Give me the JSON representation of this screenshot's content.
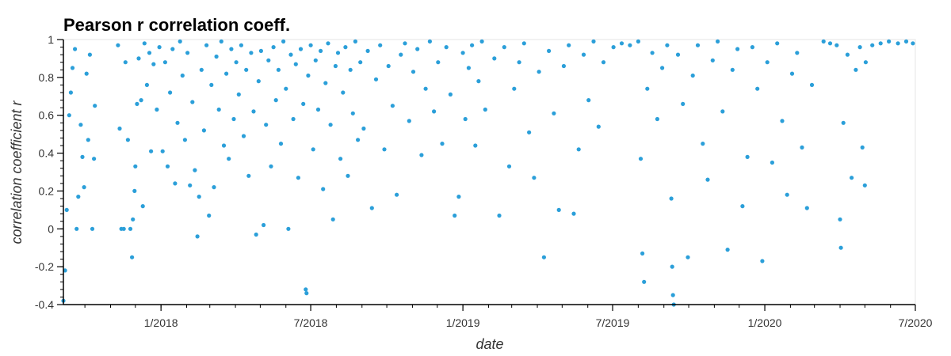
{
  "chart_data": {
    "type": "scatter",
    "title": "Pearson r correlation coeff.",
    "xlabel": "date",
    "ylabel": "correlation coefficient r",
    "x_type": "date",
    "xlim": [
      "2017-09-05",
      "2020-07-01"
    ],
    "ylim": [
      -0.4,
      1
    ],
    "y_ticks": [
      "-0.4",
      "-0.2",
      "0",
      "0.2",
      "0.4",
      "0.6",
      "0.8",
      "1"
    ],
    "y_tick_values": [
      -0.4,
      -0.2,
      0,
      0.2,
      0.4,
      0.6,
      0.8,
      1
    ],
    "x_ticks": [
      "1/2018",
      "7/2018",
      "1/2019",
      "7/2019",
      "1/2020",
      "7/2020"
    ],
    "x_tick_values": [
      "2018-01-01",
      "2018-07-01",
      "2019-01-01",
      "2019-07-01",
      "2020-01-01",
      "2020-07-01"
    ],
    "grid": false,
    "legend": "none",
    "point_color": "#2b9fd9",
    "series": [
      {
        "points": [
          [
            "2017-09-05",
            -0.38
          ],
          [
            "2017-09-07",
            -0.22
          ],
          [
            "2017-09-09",
            0.1
          ],
          [
            "2017-09-12",
            0.6
          ],
          [
            "2017-09-14",
            0.72
          ],
          [
            "2017-09-16",
            0.85
          ],
          [
            "2017-09-19",
            0.95
          ],
          [
            "2017-09-21",
            0.0
          ],
          [
            "2017-09-23",
            0.17
          ],
          [
            "2017-09-26",
            0.55
          ],
          [
            "2017-09-28",
            0.38
          ],
          [
            "2017-09-30",
            0.22
          ],
          [
            "2017-10-03",
            0.82
          ],
          [
            "2017-10-05",
            0.47
          ],
          [
            "2017-10-07",
            0.92
          ],
          [
            "2017-10-10",
            0.0
          ],
          [
            "2017-10-12",
            0.37
          ],
          [
            "2017-10-13",
            0.65
          ],
          [
            "2017-11-10",
            0.97
          ],
          [
            "2017-11-12",
            0.53
          ],
          [
            "2017-11-14",
            0.0
          ],
          [
            "2017-11-17",
            0.0
          ],
          [
            "2017-11-19",
            0.88
          ],
          [
            "2017-11-22",
            0.47
          ],
          [
            "2017-11-25",
            0.0
          ],
          [
            "2017-11-27",
            -0.15
          ],
          [
            "2017-11-28",
            0.05
          ],
          [
            "2017-11-30",
            0.2
          ],
          [
            "2017-12-01",
            0.33
          ],
          [
            "2017-12-03",
            0.66
          ],
          [
            "2017-12-05",
            0.9
          ],
          [
            "2017-12-08",
            0.68
          ],
          [
            "2017-12-10",
            0.12
          ],
          [
            "2017-12-12",
            0.98
          ],
          [
            "2017-12-15",
            0.76
          ],
          [
            "2017-12-18",
            0.93
          ],
          [
            "2017-12-20",
            0.41
          ],
          [
            "2017-12-23",
            0.87
          ],
          [
            "2017-12-27",
            0.63
          ],
          [
            "2017-12-30",
            0.96
          ],
          [
            "2018-01-03",
            0.41
          ],
          [
            "2018-01-06",
            0.88
          ],
          [
            "2018-01-09",
            0.33
          ],
          [
            "2018-01-12",
            0.72
          ],
          [
            "2018-01-15",
            0.95
          ],
          [
            "2018-01-18",
            0.24
          ],
          [
            "2018-01-21",
            0.56
          ],
          [
            "2018-01-24",
            0.99
          ],
          [
            "2018-01-27",
            0.81
          ],
          [
            "2018-01-30",
            0.47
          ],
          [
            "2018-02-02",
            0.93
          ],
          [
            "2018-02-05",
            0.23
          ],
          [
            "2018-02-08",
            0.67
          ],
          [
            "2018-02-11",
            0.31
          ],
          [
            "2018-02-14",
            -0.04
          ],
          [
            "2018-02-16",
            0.17
          ],
          [
            "2018-02-19",
            0.84
          ],
          [
            "2018-02-22",
            0.52
          ],
          [
            "2018-02-25",
            0.97
          ],
          [
            "2018-02-28",
            0.07
          ],
          [
            "2018-03-03",
            0.76
          ],
          [
            "2018-03-06",
            0.22
          ],
          [
            "2018-03-09",
            0.91
          ],
          [
            "2018-03-12",
            0.63
          ],
          [
            "2018-03-15",
            0.99
          ],
          [
            "2018-03-18",
            0.44
          ],
          [
            "2018-03-21",
            0.82
          ],
          [
            "2018-03-24",
            0.37
          ],
          [
            "2018-03-27",
            0.95
          ],
          [
            "2018-03-30",
            0.58
          ],
          [
            "2018-04-02",
            0.88
          ],
          [
            "2018-04-05",
            0.71
          ],
          [
            "2018-04-08",
            0.97
          ],
          [
            "2018-04-11",
            0.49
          ],
          [
            "2018-04-14",
            0.84
          ],
          [
            "2018-04-17",
            0.28
          ],
          [
            "2018-04-20",
            0.93
          ],
          [
            "2018-04-23",
            0.62
          ],
          [
            "2018-04-26",
            -0.03
          ],
          [
            "2018-04-29",
            0.78
          ],
          [
            "2018-05-02",
            0.94
          ],
          [
            "2018-05-05",
            0.02
          ],
          [
            "2018-05-08",
            0.55
          ],
          [
            "2018-05-11",
            0.89
          ],
          [
            "2018-05-14",
            0.33
          ],
          [
            "2018-05-17",
            0.96
          ],
          [
            "2018-05-20",
            0.68
          ],
          [
            "2018-05-23",
            0.84
          ],
          [
            "2018-05-26",
            0.45
          ],
          [
            "2018-05-29",
            0.99
          ],
          [
            "2018-06-01",
            0.74
          ],
          [
            "2018-06-04",
            0.0
          ],
          [
            "2018-06-07",
            0.92
          ],
          [
            "2018-06-10",
            0.58
          ],
          [
            "2018-06-13",
            0.87
          ],
          [
            "2018-06-16",
            0.27
          ],
          [
            "2018-06-19",
            0.95
          ],
          [
            "2018-06-22",
            0.66
          ],
          [
            "2018-06-25",
            -0.32
          ],
          [
            "2018-06-26",
            -0.34
          ],
          [
            "2018-06-28",
            0.81
          ],
          [
            "2018-07-01",
            0.97
          ],
          [
            "2018-07-04",
            0.42
          ],
          [
            "2018-07-07",
            0.89
          ],
          [
            "2018-07-10",
            0.63
          ],
          [
            "2018-07-13",
            0.94
          ],
          [
            "2018-07-16",
            0.21
          ],
          [
            "2018-07-19",
            0.77
          ],
          [
            "2018-07-22",
            0.98
          ],
          [
            "2018-07-25",
            0.55
          ],
          [
            "2018-07-28",
            0.05
          ],
          [
            "2018-07-31",
            0.86
          ],
          [
            "2018-08-03",
            0.93
          ],
          [
            "2018-08-06",
            0.37
          ],
          [
            "2018-08-09",
            0.72
          ],
          [
            "2018-08-12",
            0.96
          ],
          [
            "2018-08-15",
            0.28
          ],
          [
            "2018-08-18",
            0.84
          ],
          [
            "2018-08-21",
            0.61
          ],
          [
            "2018-08-24",
            0.99
          ],
          [
            "2018-08-27",
            0.47
          ],
          [
            "2018-08-30",
            0.88
          ],
          [
            "2018-09-03",
            0.53
          ],
          [
            "2018-09-08",
            0.94
          ],
          [
            "2018-09-13",
            0.11
          ],
          [
            "2018-09-18",
            0.79
          ],
          [
            "2018-09-23",
            0.97
          ],
          [
            "2018-09-28",
            0.42
          ],
          [
            "2018-10-03",
            0.86
          ],
          [
            "2018-10-08",
            0.65
          ],
          [
            "2018-10-13",
            0.18
          ],
          [
            "2018-10-18",
            0.92
          ],
          [
            "2018-10-23",
            0.98
          ],
          [
            "2018-10-28",
            0.57
          ],
          [
            "2018-11-02",
            0.83
          ],
          [
            "2018-11-07",
            0.95
          ],
          [
            "2018-11-12",
            0.39
          ],
          [
            "2018-11-17",
            0.74
          ],
          [
            "2018-11-22",
            0.99
          ],
          [
            "2018-11-27",
            0.62
          ],
          [
            "2018-12-02",
            0.88
          ],
          [
            "2018-12-07",
            0.45
          ],
          [
            "2018-12-12",
            0.96
          ],
          [
            "2018-12-17",
            0.71
          ],
          [
            "2018-12-22",
            0.07
          ],
          [
            "2018-12-27",
            0.17
          ],
          [
            "2019-01-01",
            0.93
          ],
          [
            "2019-01-04",
            0.58
          ],
          [
            "2019-01-08",
            0.85
          ],
          [
            "2019-01-12",
            0.97
          ],
          [
            "2019-01-16",
            0.44
          ],
          [
            "2019-01-20",
            0.78
          ],
          [
            "2019-01-24",
            0.99
          ],
          [
            "2019-01-28",
            0.63
          ],
          [
            "2019-02-08",
            0.9
          ],
          [
            "2019-02-14",
            0.07
          ],
          [
            "2019-02-20",
            0.96
          ],
          [
            "2019-02-26",
            0.33
          ],
          [
            "2019-03-04",
            0.74
          ],
          [
            "2019-03-10",
            0.88
          ],
          [
            "2019-03-16",
            0.98
          ],
          [
            "2019-03-22",
            0.51
          ],
          [
            "2019-03-28",
            0.27
          ],
          [
            "2019-04-03",
            0.83
          ],
          [
            "2019-04-09",
            -0.15
          ],
          [
            "2019-04-15",
            0.94
          ],
          [
            "2019-04-21",
            0.61
          ],
          [
            "2019-04-27",
            0.1
          ],
          [
            "2019-05-03",
            0.86
          ],
          [
            "2019-05-09",
            0.97
          ],
          [
            "2019-05-15",
            0.08
          ],
          [
            "2019-05-21",
            0.42
          ],
          [
            "2019-05-27",
            0.92
          ],
          [
            "2019-06-02",
            0.68
          ],
          [
            "2019-06-08",
            0.99
          ],
          [
            "2019-06-14",
            0.54
          ],
          [
            "2019-06-20",
            0.88
          ],
          [
            "2019-07-02",
            0.96
          ],
          [
            "2019-07-12",
            0.98
          ],
          [
            "2019-07-22",
            0.97
          ],
          [
            "2019-08-01",
            0.99
          ],
          [
            "2019-08-04",
            0.37
          ],
          [
            "2019-08-06",
            -0.13
          ],
          [
            "2019-08-08",
            -0.28
          ],
          [
            "2019-08-12",
            0.74
          ],
          [
            "2019-08-18",
            0.93
          ],
          [
            "2019-08-24",
            0.58
          ],
          [
            "2019-08-30",
            0.85
          ],
          [
            "2019-09-05",
            0.97
          ],
          [
            "2019-09-10",
            0.16
          ],
          [
            "2019-09-11",
            -0.2
          ],
          [
            "2019-09-12",
            -0.35
          ],
          [
            "2019-09-13",
            -0.4
          ],
          [
            "2019-09-18",
            0.92
          ],
          [
            "2019-09-24",
            0.66
          ],
          [
            "2019-09-30",
            -0.15
          ],
          [
            "2019-10-06",
            0.81
          ],
          [
            "2019-10-12",
            0.97
          ],
          [
            "2019-10-18",
            0.45
          ],
          [
            "2019-10-24",
            0.26
          ],
          [
            "2019-10-30",
            0.89
          ],
          [
            "2019-11-05",
            0.99
          ],
          [
            "2019-11-11",
            0.62
          ],
          [
            "2019-11-17",
            -0.11
          ],
          [
            "2019-11-23",
            0.84
          ],
          [
            "2019-11-29",
            0.95
          ],
          [
            "2019-12-05",
            0.12
          ],
          [
            "2019-12-11",
            0.38
          ],
          [
            "2019-12-17",
            0.96
          ],
          [
            "2019-12-23",
            0.74
          ],
          [
            "2019-12-29",
            -0.17
          ],
          [
            "2020-01-04",
            0.88
          ],
          [
            "2020-01-10",
            0.35
          ],
          [
            "2020-01-16",
            0.98
          ],
          [
            "2020-01-22",
            0.57
          ],
          [
            "2020-01-28",
            0.18
          ],
          [
            "2020-02-03",
            0.82
          ],
          [
            "2020-02-09",
            0.93
          ],
          [
            "2020-02-15",
            0.43
          ],
          [
            "2020-02-21",
            0.11
          ],
          [
            "2020-02-27",
            0.76
          ],
          [
            "2020-03-12",
            0.99
          ],
          [
            "2020-03-20",
            0.98
          ],
          [
            "2020-03-28",
            0.97
          ],
          [
            "2020-04-01",
            0.05
          ],
          [
            "2020-04-02",
            -0.1
          ],
          [
            "2020-04-05",
            0.56
          ],
          [
            "2020-04-10",
            0.92
          ],
          [
            "2020-04-15",
            0.27
          ],
          [
            "2020-04-20",
            0.84
          ],
          [
            "2020-04-25",
            0.96
          ],
          [
            "2020-04-28",
            0.43
          ],
          [
            "2020-05-01",
            0.23
          ],
          [
            "2020-05-02",
            0.88
          ],
          [
            "2020-05-10",
            0.97
          ],
          [
            "2020-05-20",
            0.98
          ],
          [
            "2020-05-30",
            0.99
          ],
          [
            "2020-06-10",
            0.98
          ],
          [
            "2020-06-20",
            0.99
          ],
          [
            "2020-06-28",
            0.98
          ]
        ]
      }
    ]
  }
}
